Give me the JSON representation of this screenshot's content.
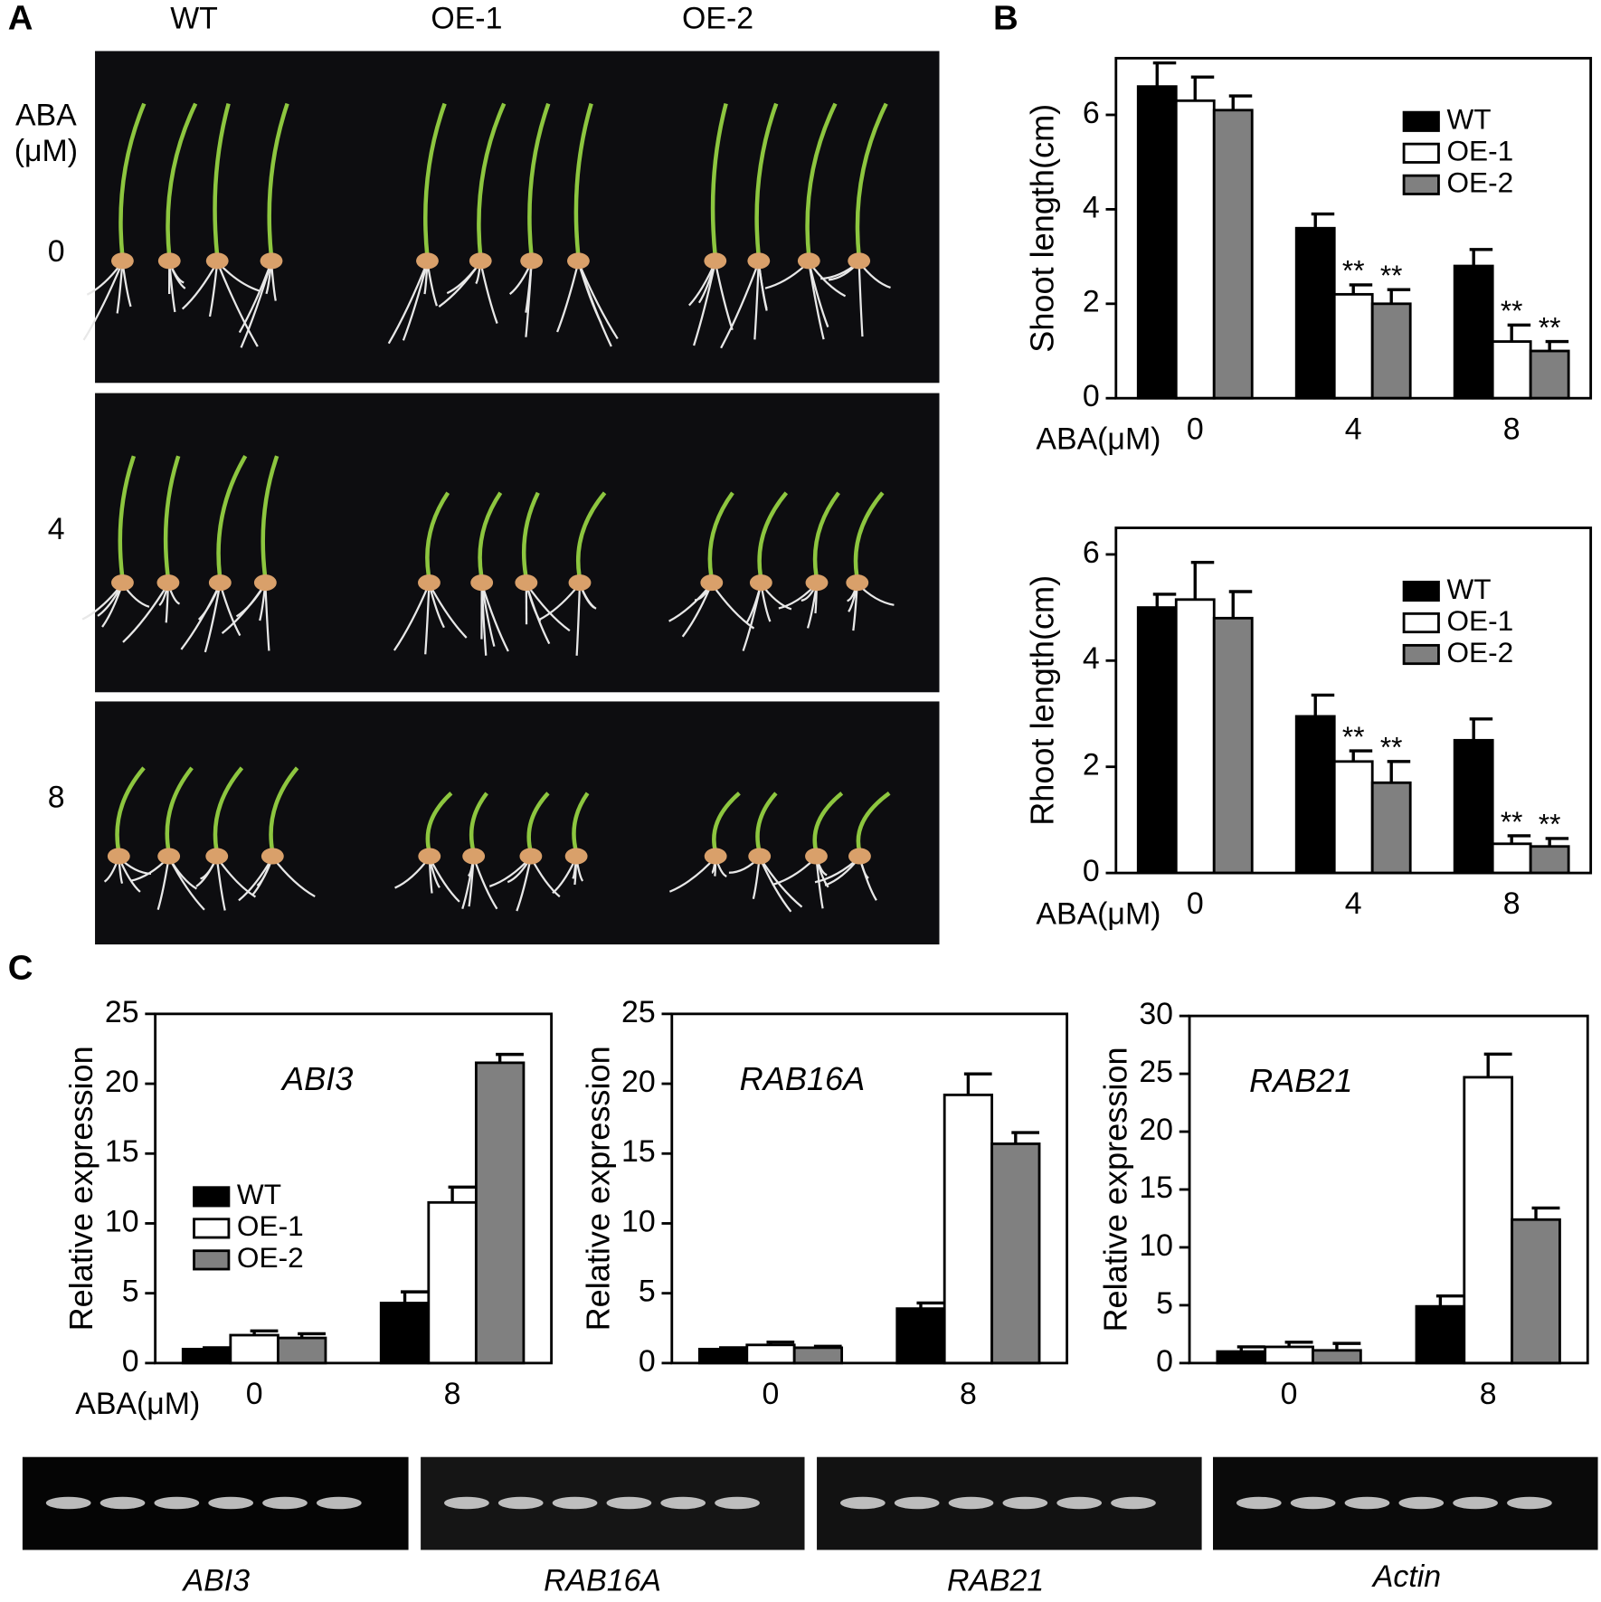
{
  "panel_labels": [
    "A",
    "B",
    "C"
  ],
  "photo": {
    "column_labels": [
      "WT",
      "OE-1",
      "OE-2"
    ],
    "row_title": [
      "ABA",
      "(μM)"
    ],
    "row_labels": [
      "0",
      "4",
      "8"
    ]
  },
  "chart_data": [
    {
      "type": "bar",
      "y_label": "Shoot length(cm)",
      "x_label": "ABA(μM)",
      "categories": [
        "0",
        "4",
        "8"
      ],
      "ylim": [
        0,
        7.2
      ],
      "yticks": [
        0,
        2,
        4,
        6
      ],
      "legend": "upper right",
      "series": [
        {
          "name": "WT",
          "color": "#000000",
          "values": [
            6.6,
            3.6,
            2.8
          ],
          "errors": [
            0.5,
            0.3,
            0.35
          ],
          "significance": [
            null,
            null,
            null
          ]
        },
        {
          "name": "OE-1",
          "color": "#ffffff",
          "values": [
            6.3,
            2.2,
            1.2
          ],
          "errors": [
            0.5,
            0.2,
            0.35
          ],
          "significance": [
            null,
            "**",
            "**"
          ]
        },
        {
          "name": "OE-2",
          "color": "#808080",
          "values": [
            6.1,
            2.0,
            1.0
          ],
          "errors": [
            0.3,
            0.3,
            0.2
          ],
          "significance": [
            null,
            "**",
            "**"
          ]
        }
      ]
    },
    {
      "type": "bar",
      "y_label": "Rhoot length(cm)",
      "x_label": "ABA(μM)",
      "categories": [
        "0",
        "4",
        "8"
      ],
      "ylim": [
        0,
        6.5
      ],
      "yticks": [
        0,
        2,
        4,
        6
      ],
      "legend": "upper right",
      "series": [
        {
          "name": "WT",
          "color": "#000000",
          "values": [
            5.0,
            2.95,
            2.5
          ],
          "errors": [
            0.25,
            0.4,
            0.4
          ],
          "significance": [
            null,
            null,
            null
          ]
        },
        {
          "name": "OE-1",
          "color": "#ffffff",
          "values": [
            5.15,
            2.1,
            0.55
          ],
          "errors": [
            0.7,
            0.2,
            0.15
          ],
          "significance": [
            null,
            "**",
            "**"
          ]
        },
        {
          "name": "OE-2",
          "color": "#808080",
          "values": [
            4.8,
            1.7,
            0.5
          ],
          "errors": [
            0.5,
            0.4,
            0.15
          ],
          "significance": [
            null,
            "**",
            "**"
          ]
        }
      ]
    },
    {
      "type": "bar",
      "y_label": "Relative expression",
      "x_label": "ABA(μM)",
      "annotation": "ABI3",
      "categories": [
        "0",
        "8"
      ],
      "ylim": [
        0,
        25
      ],
      "yticks": [
        0,
        5,
        10,
        15,
        20,
        25
      ],
      "legend": "center left",
      "series": [
        {
          "name": "WT",
          "color": "#000000",
          "values": [
            1.0,
            4.3
          ],
          "errors": [
            0.1,
            0.8
          ]
        },
        {
          "name": "OE-1",
          "color": "#ffffff",
          "values": [
            2.0,
            11.5
          ],
          "errors": [
            0.3,
            1.1
          ]
        },
        {
          "name": "OE-2",
          "color": "#808080",
          "values": [
            1.8,
            21.5
          ],
          "errors": [
            0.3,
            0.6
          ]
        }
      ]
    },
    {
      "type": "bar",
      "y_label": "Relative expression",
      "annotation": "RAB16A",
      "categories": [
        "0",
        "8"
      ],
      "ylim": [
        0,
        25
      ],
      "yticks": [
        0,
        5,
        10,
        15,
        20,
        25
      ],
      "series": [
        {
          "color": "#000000",
          "values": [
            1.0,
            3.9
          ],
          "errors": [
            0.1,
            0.4
          ]
        },
        {
          "color": "#ffffff",
          "values": [
            1.3,
            19.2
          ],
          "errors": [
            0.2,
            1.5
          ]
        },
        {
          "color": "#808080",
          "values": [
            1.1,
            15.7
          ],
          "errors": [
            0.1,
            0.8
          ]
        }
      ]
    },
    {
      "type": "bar",
      "y_label": "Relative expression",
      "annotation": "RAB21",
      "categories": [
        "0",
        "8"
      ],
      "ylim": [
        0,
        30
      ],
      "yticks": [
        0,
        5,
        10,
        15,
        20,
        25,
        30
      ],
      "series": [
        {
          "color": "#000000",
          "values": [
            1.0,
            4.9
          ],
          "errors": [
            0.4,
            0.9
          ]
        },
        {
          "color": "#ffffff",
          "values": [
            1.4,
            24.7
          ],
          "errors": [
            0.4,
            2.0
          ]
        },
        {
          "color": "#808080",
          "values": [
            1.1,
            12.4
          ],
          "errors": [
            0.6,
            1.0
          ]
        }
      ]
    }
  ],
  "gel": {
    "labels": [
      "ABI3",
      "RAB16A",
      "RAB21",
      "Actin"
    ]
  }
}
